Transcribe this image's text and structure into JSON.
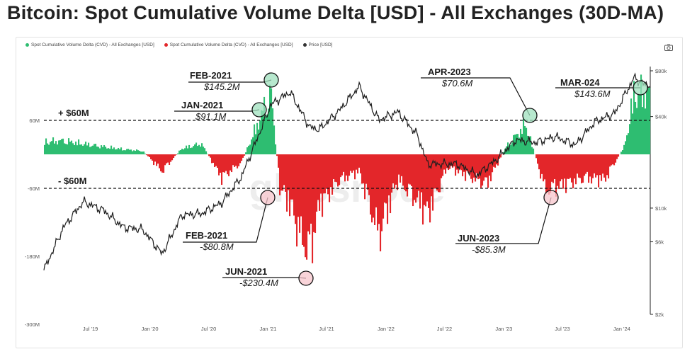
{
  "title": "Bitcoin: Spot Cumulative Volume Delta [USD] - All Exchanges (30D-MA)",
  "legend": [
    {
      "label": "Spot Cumulative Volume Delta (CVD) - All Exchanges [USD]",
      "color": "#2ebd71"
    },
    {
      "label": "Spot Cumulative Volume Delta (CVD) - All Exchanges [USD]",
      "color": "#e3262a"
    },
    {
      "label": "Price [USD]",
      "color": "#333333"
    }
  ],
  "camera_icon": "camera-icon",
  "watermark": "glassnode",
  "colors": {
    "positive": "#2ebd71",
    "negative": "#e3262a",
    "price": "#1f1f1f",
    "circle_pos": "#9fe0bd",
    "circle_neg": "#f7c6cc"
  },
  "chart_data": {
    "type": "bar",
    "x_tick_labels": [
      "Jul '19",
      "Jan '20",
      "Jul '20",
      "Jan '21",
      "Jul '21",
      "Jan '22",
      "Jul '22",
      "Jan '23",
      "Jul '23",
      "Jan '24"
    ],
    "x_range": [
      "2019-03",
      "2024-04"
    ],
    "left_axis": {
      "tick_labels": [
        "60M",
        "-60M",
        "-180M",
        "-300M"
      ],
      "ylim": [
        -300,
        100
      ],
      "unit": "M USD"
    },
    "right_axis": {
      "tick_labels": [
        "$80k",
        "$40k",
        "$10k",
        "$6k",
        "$2k"
      ],
      "scale": "log"
    },
    "thresholds": [
      {
        "label": "+ $60M",
        "value": 60
      },
      {
        "label": "- $60M",
        "value": -60
      }
    ],
    "series": [
      {
        "name": "Spot Cumulative Volume Delta (CVD) - All Exchanges [USD]",
        "unit": "M USD",
        "x": [
          "2019-03",
          "2019-05",
          "2019-07",
          "2019-09",
          "2019-11",
          "2020-01",
          "2020-03",
          "2020-05",
          "2020-07",
          "2020-09",
          "2020-11",
          "2021-01",
          "2021-02",
          "2021-03",
          "2021-04",
          "2021-05",
          "2021-06",
          "2021-07",
          "2021-09",
          "2021-11",
          "2022-01",
          "2022-03",
          "2022-05",
          "2022-06",
          "2022-08",
          "2022-10",
          "2022-12",
          "2023-02",
          "2023-04",
          "2023-06",
          "2023-08",
          "2023-10",
          "2023-12",
          "2024-02",
          "2024-03"
        ],
        "values": [
          30,
          32,
          25,
          18,
          12,
          8,
          -40,
          14,
          25,
          -55,
          -20,
          91.1,
          145.2,
          -80.8,
          -120,
          -190,
          -230.4,
          -120,
          -60,
          -40,
          -190,
          -60,
          -110,
          -140,
          -30,
          -50,
          -70,
          20,
          70.6,
          -85.3,
          -70,
          -55,
          -60,
          20,
          143.6
        ]
      },
      {
        "name": "Price [USD]",
        "unit": "USD",
        "x": [
          "2019-03",
          "2019-05",
          "2019-07",
          "2019-09",
          "2019-11",
          "2020-01",
          "2020-03",
          "2020-05",
          "2020-07",
          "2020-09",
          "2020-11",
          "2021-01",
          "2021-02",
          "2021-04",
          "2021-06",
          "2021-07",
          "2021-09",
          "2021-11",
          "2022-01",
          "2022-03",
          "2022-05",
          "2022-06",
          "2022-09",
          "2022-11",
          "2023-01",
          "2023-03",
          "2023-05",
          "2023-07",
          "2023-09",
          "2023-11",
          "2024-01",
          "2024-03",
          "2024-04"
        ],
        "values": [
          3900,
          7500,
          11000,
          9700,
          7500,
          7200,
          5000,
          9000,
          9200,
          10800,
          16000,
          33000,
          48000,
          58000,
          34000,
          33000,
          44000,
          63000,
          38000,
          43000,
          30000,
          19500,
          19500,
          16500,
          21000,
          28000,
          27000,
          29500,
          26000,
          37000,
          42000,
          72000,
          65000
        ]
      }
    ],
    "annotations": [
      {
        "id": "feb-2021-pos",
        "title": "FEB-2021",
        "value": "$145.2M"
      },
      {
        "id": "jan-2021-pos",
        "title": "JAN-2021",
        "value": "$91.1M"
      },
      {
        "id": "feb-2021-neg",
        "title": "FEB-2021",
        "value": "-$80.8M"
      },
      {
        "id": "jun-2021-neg",
        "title": "JUN-2021",
        "value": "-$230.4M"
      },
      {
        "id": "apr-2023-pos",
        "title": "APR-2023",
        "value": "$70.6M"
      },
      {
        "id": "mar-2024-pos",
        "title": "MAR-024",
        "value": "$143.6M"
      },
      {
        "id": "jun-2023-neg",
        "title": "JUN-2023",
        "value": "-$85.3M"
      }
    ]
  }
}
